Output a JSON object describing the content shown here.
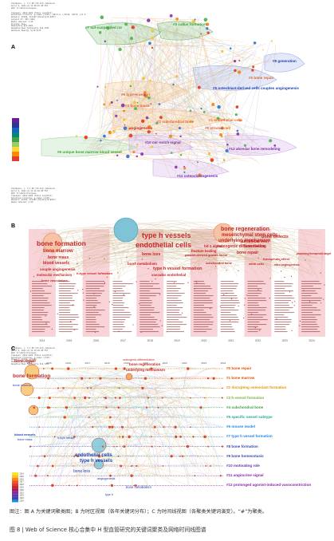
{
  "panel_a": {
    "letter": "A",
    "meta": "CiteSpace, v. 6.1.R6 (64-bit) Advanced\nApril 9, 2024 at 11:39:15 AM CST\nWoS: D:\\data\\citespace\n\nTimespan: 2014-2024 (Slice Length=1)\nSelection Criteria: g-index (k=25), LRF=3.0, L/N=10, LBY=5, e=1.0\nNetwork: N=338, E=1463 (Density=0.0257)\nLargest CC: 333 (98%)\nNodes Labeled: 1.0%\nPruning: None\nModularity Q=0.4021\nWeighted Mean Silhouette S=0.7256\nHarmonic Mean(Q, S)=0.5175",
    "clusters": [
      {
        "label": "#7 tail-suspended rat",
        "color": "#3aa33a"
      },
      {
        "label": "#3 callus formation",
        "color": "#3aa33a"
      },
      {
        "label": "#0 bone repair",
        "color": "#e06a2a"
      },
      {
        "label": "#8 generation",
        "color": "#1e3fae"
      },
      {
        "label": "#5 osteoblast-derived cells couples angiogenesis",
        "color": "#1e3fae"
      },
      {
        "label": "#9 type-H vessel",
        "color": "#e06a2a"
      },
      {
        "label": "#2 subchondral bone",
        "color": "#e06a2a"
      },
      {
        "label": "#4 bone mass",
        "color": "#e06a2a"
      },
      {
        "label": "#1 endothelial cells",
        "color": "#e06a2a"
      },
      {
        "label": "#6 stromal cell",
        "color": "#e06a2a"
      },
      {
        "label": "angiogenesis",
        "color": "#c22"
      },
      {
        "label": "#10 mir-notch signal",
        "color": "#7b2fa8"
      },
      {
        "label": "#12 alveolar bone remodeling",
        "color": "#7b2fa8"
      },
      {
        "label": "#6 unique bone marrow blood vessel",
        "color": "#3aa33a"
      },
      {
        "label": "#11 osteoclastogenesis",
        "color": "#7b2fa8"
      }
    ]
  },
  "panel_b": {
    "letter": "B",
    "meta": "CiteSpace, v. 6.1.R6 (64-bit) Advanced\nApril 9, 2024 at 11:41:02 AM CST\nWoS: D:\\data\\citespace\nTimespan: 2014-2024 (Slice Length=1)\nSelection Criteria: g-index (k=25)\nNetwork: N=338, E=1463 (Density=0.0257)\nNodes Labeled: 2.0%",
    "years": [
      "2014",
      "2015",
      "2016",
      "2017",
      "2018",
      "2019",
      "2020",
      "2021",
      "2022",
      "2023",
      "2024"
    ],
    "big_terms": [
      {
        "text": "bone formation",
        "color": "#c62828"
      },
      {
        "text": "bone marrow",
        "color": "#c62828"
      },
      {
        "text": "type h vessels",
        "color": "#c62828"
      },
      {
        "text": "endothelial cells",
        "color": "#c62828"
      },
      {
        "text": "bone regeneration",
        "color": "#c62828"
      },
      {
        "text": "mesenchymal stem cells",
        "color": "#c62828"
      },
      {
        "text": "underlying mechanism",
        "color": "#c62828"
      },
      {
        "text": "osteogenic differentiation",
        "color": "#c62828"
      },
      {
        "text": "bone defects",
        "color": "#c62828"
      },
      {
        "text": "bone repair",
        "color": "#c62828"
      },
      {
        "text": "bone mass",
        "color": "#c62828"
      },
      {
        "text": "blood vessels",
        "color": "#c62828"
      },
      {
        "text": "couple angiogenesis",
        "color": "#c62828"
      },
      {
        "text": "molecular mechanism",
        "color": "#c62828"
      },
      {
        "text": "bone vasculature",
        "color": "#c62828"
      },
      {
        "text": "bone loss",
        "color": "#c62828"
      },
      {
        "text": "bone metabolism",
        "color": "#c62828"
      },
      {
        "text": "h-type vessel formation",
        "color": "#c62828"
      },
      {
        "text": "type h vessel formation",
        "color": "#c62828"
      },
      {
        "text": "vascular endothelial",
        "color": "#c62828"
      },
      {
        "text": "umbilical vein",
        "color": "#c62828"
      },
      {
        "text": "bone healing",
        "color": "#c62828"
      },
      {
        "text": "fracture healing",
        "color": "#c62828"
      },
      {
        "text": "platelet-derived growth factor",
        "color": "#c62828"
      },
      {
        "text": "subchondral bone",
        "color": "#c62828"
      },
      {
        "text": "therapeutic effect",
        "color": "#c62828"
      },
      {
        "text": "hif-1 alpha",
        "color": "#c62828"
      },
      {
        "text": "stem cells",
        "color": "#c62828"
      },
      {
        "text": "vitro angiogenesis",
        "color": "#c62828"
      },
      {
        "text": "promising therapeutic target",
        "color": "#c62828"
      }
    ]
  },
  "panel_c": {
    "letter": "C",
    "meta": "CiteSpace, v. 6.1.R6 (64-bit) Advanced\nApril 9, 2024 at 11:43:20 AM CST\nWoS: D:\\data\\citespace\nTimespan: 2014-2024 (Slice Length=1)\nSelection Criteria: g-index (k=25)\nNetwork: N=338, E=1463\nModularity Q=0.4021\nWeighted Mean Silhouette S=0.7256",
    "years": [
      "2014",
      "2015",
      "2016",
      "2017",
      "2018",
      "2019",
      "2020",
      "2021",
      "2022",
      "2023",
      "2024"
    ],
    "legend_years": [
      "2014",
      "2015",
      "2016",
      "2017",
      "2018",
      "2019",
      "2020",
      "2021",
      "2022",
      "2023",
      "2024"
    ],
    "node_labels": [
      {
        "text": "bone repair",
        "color": "#c62828"
      },
      {
        "text": "bone formation",
        "color": "#c62828"
      },
      {
        "text": "bone marrow",
        "color": "#1e3fae"
      },
      {
        "text": "blood vessels",
        "color": "#1e3fae"
      },
      {
        "text": "bone mass",
        "color": "#1e3fae"
      },
      {
        "text": "endothelial cells",
        "color": "#1e3fae"
      },
      {
        "text": "type h vessels",
        "color": "#1e3fae"
      },
      {
        "text": "bone loss",
        "color": "#1e3fae"
      },
      {
        "text": "bone regeneration",
        "color": "#c62828"
      },
      {
        "text": "osteogenic differentiation",
        "color": "#c62828"
      },
      {
        "text": "underlying mechanism",
        "color": "#c62828"
      },
      {
        "text": "bone metabolism",
        "color": "#1e3fae"
      },
      {
        "text": "angiogenesis",
        "color": "#1e3fae"
      },
      {
        "text": "h-type vessel",
        "color": "#1e3fae"
      },
      {
        "text": "type h",
        "color": "#1e3fae"
      }
    ],
    "clusters": [
      {
        "label": "#0 bone repair",
        "color": "#e65100"
      },
      {
        "label": "#1 bone marrow",
        "color": "#e65100"
      },
      {
        "label": "#2 disrupting osteoclast formation",
        "color": "#e69500"
      },
      {
        "label": "#3 h-vessel formation",
        "color": "#7cb342"
      },
      {
        "label": "#4 subchondral bone",
        "color": "#43a047"
      },
      {
        "label": "#5 specific vessel subtype",
        "color": "#26a69a"
      },
      {
        "label": "#6 mouse model",
        "color": "#1e88e5"
      },
      {
        "label": "#7 type h vessel formation",
        "color": "#1e88e5"
      },
      {
        "label": "#8 bone formation",
        "color": "#3949ab"
      },
      {
        "label": "#9 bone homeostasis",
        "color": "#3949ab"
      },
      {
        "label": "#10 motivating role",
        "color": "#5e35b1"
      },
      {
        "label": "#11 angiocrine signal",
        "color": "#8e24aa"
      },
      {
        "label": "#12 prolonged agonist-induced vasoconstriction",
        "color": "#8e24aa"
      }
    ]
  },
  "caption": {
    "line1": "图注：图 A 为关键词聚类图；B 为时区视图（各年关键词分布）；C 为时间线视图（各聚类关键词演变）。“#”为聚类。",
    "line2": "图 8 | Web of Science 核心合集中 H 型血管研究的关键词聚类及网络时间线图谱"
  }
}
